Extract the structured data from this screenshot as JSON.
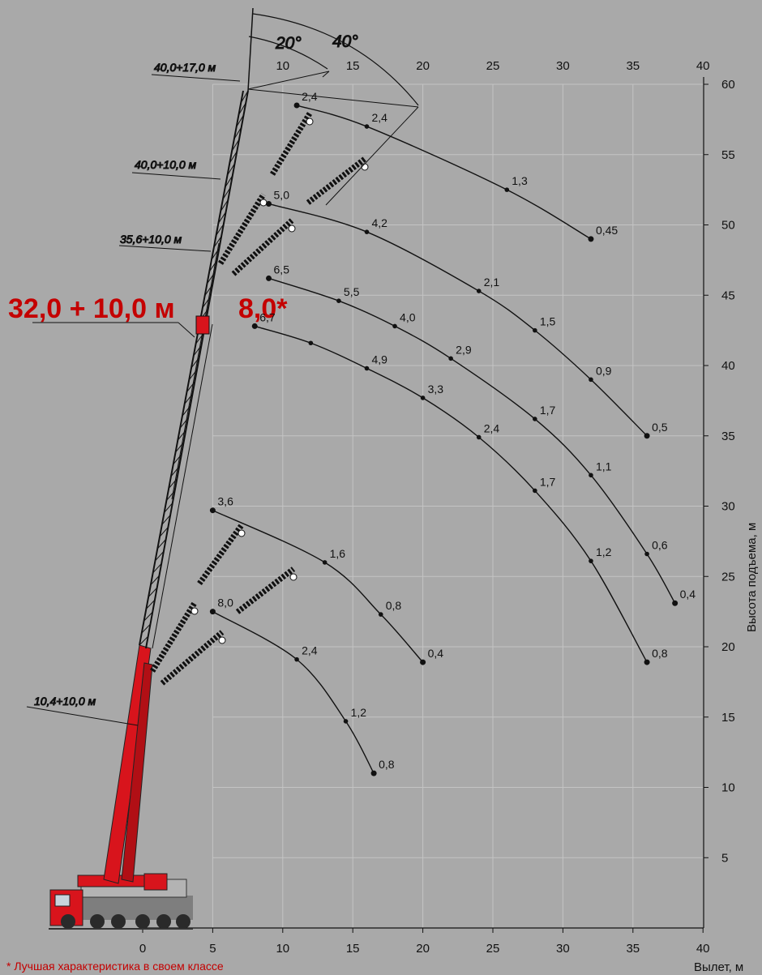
{
  "chart_data": {
    "type": "line",
    "title": "",
    "xlabel": "Вылет, м",
    "ylabel": "Высота подъема, м",
    "xlim": [
      0,
      40
    ],
    "ylim": [
      0,
      60
    ],
    "x_ticks_top": [
      "10",
      "15",
      "20",
      "25",
      "30",
      "35",
      "40"
    ],
    "x_ticks_bottom": [
      "0",
      "5",
      "10",
      "15",
      "20",
      "25",
      "30",
      "35",
      "40"
    ],
    "y_ticks": [
      "5",
      "10",
      "15",
      "20",
      "25",
      "30",
      "35",
      "40",
      "45",
      "50",
      "55",
      "60"
    ],
    "grid": false,
    "angles": [
      "20°",
      "40°"
    ],
    "boom_configs": [
      "40,0+17,0 м",
      "40,0+10,0 м",
      "35,6+10,0 м",
      "10,4+10,0 м"
    ],
    "highlight": {
      "config": "32,0 + 10,0 м",
      "value": "8,0*"
    },
    "series": [
      {
        "points": [
          {
            "x": 11,
            "y": 58.5,
            "label": "2,4"
          },
          {
            "x": 16,
            "y": 57,
            "label": "2,4"
          },
          {
            "x": 26,
            "y": 52.5,
            "label": "1,3"
          },
          {
            "x": 32,
            "y": 49,
            "label": "0,45"
          }
        ]
      },
      {
        "points": [
          {
            "x": 9,
            "y": 51.5,
            "label": "5,0"
          },
          {
            "x": 16,
            "y": 49.5,
            "label": "4,2"
          },
          {
            "x": 24,
            "y": 45.3,
            "label": "2,1"
          },
          {
            "x": 28,
            "y": 42.5,
            "label": "1,5"
          },
          {
            "x": 32,
            "y": 39,
            "label": "0,9"
          },
          {
            "x": 36,
            "y": 35,
            "label": "0,5"
          }
        ]
      },
      {
        "points": [
          {
            "x": 9,
            "y": 46.2,
            "label": "6,5"
          },
          {
            "x": 14,
            "y": 44.6,
            "label": "5,5"
          },
          {
            "x": 18,
            "y": 42.8,
            "label": "4,0"
          },
          {
            "x": 22,
            "y": 40.5,
            "label": "2,9"
          },
          {
            "x": 28,
            "y": 36.2,
            "label": "1,7"
          },
          {
            "x": 32,
            "y": 32.2,
            "label": "1,1"
          },
          {
            "x": 36,
            "y": 26.6,
            "label": "0,6"
          },
          {
            "x": 38,
            "y": 23.1,
            "label": "0,4"
          }
        ]
      },
      {
        "points": [
          {
            "x": 8,
            "y": 42.8,
            "label": "6,7"
          },
          {
            "x": 12,
            "y": 41.6,
            "label": "6,7_dup"
          },
          {
            "x": 16,
            "y": 39.8,
            "label": "4,9"
          },
          {
            "x": 20,
            "y": 37.7,
            "label": "3,3"
          },
          {
            "x": 24,
            "y": 34.9,
            "label": "2,4"
          },
          {
            "x": 28,
            "y": 31.1,
            "label": "1,7"
          },
          {
            "x": 32,
            "y": 26.1,
            "label": "1,2"
          },
          {
            "x": 36,
            "y": 18.9,
            "label": "0,8"
          }
        ]
      },
      {
        "points": [
          {
            "x": 5,
            "y": 29.7,
            "label": "3,6"
          },
          {
            "x": 13,
            "y": 26.0,
            "label": "1,6"
          },
          {
            "x": 17,
            "y": 22.3,
            "label": "0,8"
          },
          {
            "x": 20,
            "y": 18.9,
            "label": "0,4"
          }
        ]
      },
      {
        "points": [
          {
            "x": 5,
            "y": 22.5,
            "label": "8,0"
          },
          {
            "x": 11,
            "y": 19.1,
            "label": "2,4"
          },
          {
            "x": 14.5,
            "y": 14.7,
            "label": "1,2"
          },
          {
            "x": 16.5,
            "y": 11,
            "label": "0,8"
          }
        ]
      }
    ]
  },
  "footnote": "* Лучшая характеристика в своем классе",
  "colors": {
    "background": "#a9a9a9",
    "crane_red": "#d8141c",
    "highlight": "#c40000",
    "line": "#111111"
  }
}
